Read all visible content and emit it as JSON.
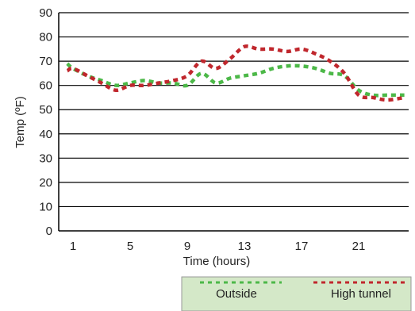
{
  "chart_data": {
    "type": "line",
    "xlabel": "Time (hours)",
    "ylabel": "Temp (ºF)",
    "xlim": [
      0,
      24.5
    ],
    "ylim": [
      0,
      90
    ],
    "x_ticks": [
      1,
      5,
      9,
      13,
      17,
      21
    ],
    "y_ticks": [
      0,
      10,
      20,
      30,
      40,
      50,
      60,
      70,
      80,
      90
    ],
    "grid": "horizontal",
    "legend_position": "bottom-right",
    "series": [
      {
        "name": "Outside",
        "color": "#4cb848",
        "style": "dotted",
        "x": [
          0.6,
          1,
          2,
          3,
          4,
          5,
          6,
          7,
          8,
          9,
          10,
          11,
          12,
          13,
          14,
          15,
          16,
          17,
          18,
          19,
          20,
          21,
          22,
          23,
          24.2
        ],
        "y": [
          69,
          67,
          64,
          62,
          60,
          61,
          62,
          61,
          61,
          60,
          65,
          61,
          63,
          64,
          65,
          67,
          68,
          68,
          67,
          65,
          64,
          58,
          56,
          56,
          56
        ]
      },
      {
        "name": "High tunnel",
        "color": "#c0272d",
        "style": "dotted",
        "x": [
          0.6,
          1,
          2,
          3,
          4,
          5,
          6,
          7,
          8,
          9,
          10,
          11,
          12,
          13,
          14,
          15,
          16,
          17,
          18,
          19,
          20,
          21,
          22,
          23,
          24.2
        ],
        "y": [
          66,
          67,
          64,
          61,
          58,
          60,
          60,
          61,
          62,
          64,
          70,
          67,
          71,
          76,
          75,
          75,
          74,
          75,
          73,
          70,
          65,
          56,
          55,
          54,
          55
        ]
      }
    ]
  }
}
